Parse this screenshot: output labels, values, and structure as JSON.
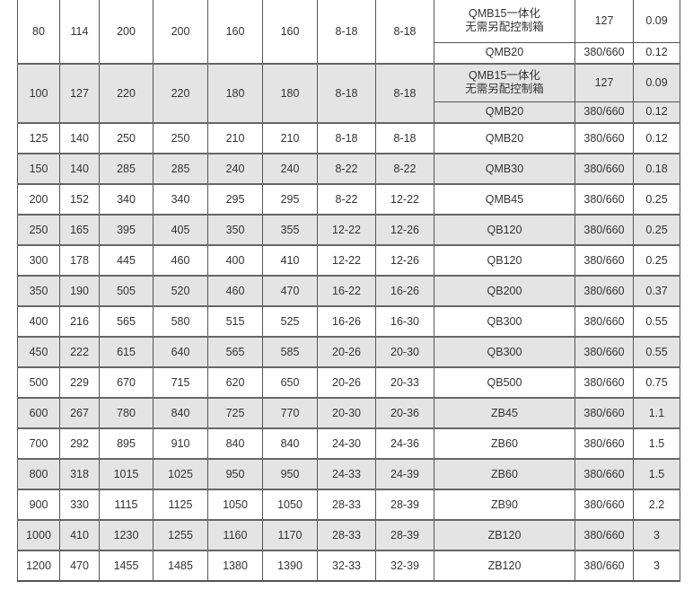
{
  "shade_color": "#e4e4e4",
  "rows": [
    {
      "c": [
        "80",
        "114",
        "200",
        "200",
        "160",
        "160",
        "8-18",
        "8-18"
      ],
      "sub": [
        [
          "QMB15一体化\n无需另配控制箱",
          "127",
          "0.09"
        ],
        [
          "QMB20",
          "380/660",
          "0.12"
        ]
      ],
      "shaded": false
    },
    {
      "c": [
        "100",
        "127",
        "220",
        "220",
        "180",
        "180",
        "8-18",
        "8-18"
      ],
      "sub": [
        [
          "QMB15一体化\n无需另配控制箱",
          "127",
          "0.09"
        ],
        [
          "QMB20",
          "380/660",
          "0.12"
        ]
      ],
      "shaded": true
    },
    {
      "c": [
        "125",
        "140",
        "250",
        "250",
        "210",
        "210",
        "8-18",
        "8-18"
      ],
      "sub": [
        [
          "QMB20",
          "380/660",
          "0.12"
        ]
      ],
      "shaded": false
    },
    {
      "c": [
        "150",
        "140",
        "285",
        "285",
        "240",
        "240",
        "8-22",
        "8-22"
      ],
      "sub": [
        [
          "QMB30",
          "380/660",
          "0.18"
        ]
      ],
      "shaded": true
    },
    {
      "c": [
        "200",
        "152",
        "340",
        "340",
        "295",
        "295",
        "8-22",
        "12-22"
      ],
      "sub": [
        [
          "QMB45",
          "380/660",
          "0.25"
        ]
      ],
      "shaded": false
    },
    {
      "c": [
        "250",
        "165",
        "395",
        "405",
        "350",
        "355",
        "12-22",
        "12-26"
      ],
      "sub": [
        [
          "QB120",
          "380/660",
          "0.25"
        ]
      ],
      "shaded": true
    },
    {
      "c": [
        "300",
        "178",
        "445",
        "460",
        "400",
        "410",
        "12-22",
        "12-26"
      ],
      "sub": [
        [
          "QB120",
          "380/660",
          "0.25"
        ]
      ],
      "shaded": false
    },
    {
      "c": [
        "350",
        "190",
        "505",
        "520",
        "460",
        "470",
        "16-22",
        "16-26"
      ],
      "sub": [
        [
          "QB200",
          "380/660",
          "0.37"
        ]
      ],
      "shaded": true
    },
    {
      "c": [
        "400",
        "216",
        "565",
        "580",
        "515",
        "525",
        "16-26",
        "16-30"
      ],
      "sub": [
        [
          "QB300",
          "380/660",
          "0.55"
        ]
      ],
      "shaded": false
    },
    {
      "c": [
        "450",
        "222",
        "615",
        "640",
        "565",
        "585",
        "20-26",
        "20-30"
      ],
      "sub": [
        [
          "QB300",
          "380/660",
          "0.55"
        ]
      ],
      "shaded": true
    },
    {
      "c": [
        "500",
        "229",
        "670",
        "715",
        "620",
        "650",
        "20-26",
        "20-33"
      ],
      "sub": [
        [
          "QB500",
          "380/660",
          "0.75"
        ]
      ],
      "shaded": false
    },
    {
      "c": [
        "600",
        "267",
        "780",
        "840",
        "725",
        "770",
        "20-30",
        "20-36"
      ],
      "sub": [
        [
          "ZB45",
          "380/660",
          "1.1"
        ]
      ],
      "shaded": true
    },
    {
      "c": [
        "700",
        "292",
        "895",
        "910",
        "840",
        "840",
        "24-30",
        "24-36"
      ],
      "sub": [
        [
          "ZB60",
          "380/660",
          "1.5"
        ]
      ],
      "shaded": false
    },
    {
      "c": [
        "800",
        "318",
        "1015",
        "1025",
        "950",
        "950",
        "24-33",
        "24-39"
      ],
      "sub": [
        [
          "ZB60",
          "380/660",
          "1.5"
        ]
      ],
      "shaded": true
    },
    {
      "c": [
        "900",
        "330",
        "1115",
        "1125",
        "1050",
        "1050",
        "28-33",
        "28-39"
      ],
      "sub": [
        [
          "ZB90",
          "380/660",
          "2.2"
        ]
      ],
      "shaded": false
    },
    {
      "c": [
        "1000",
        "410",
        "1230",
        "1255",
        "1160",
        "1170",
        "28-33",
        "28-39"
      ],
      "sub": [
        [
          "ZB120",
          "380/660",
          "3"
        ]
      ],
      "shaded": true
    },
    {
      "c": [
        "1200",
        "470",
        "1455",
        "1485",
        "1380",
        "1390",
        "32-33",
        "32-39"
      ],
      "sub": [
        [
          "ZB120",
          "380/660",
          "3"
        ]
      ],
      "shaded": false
    }
  ]
}
